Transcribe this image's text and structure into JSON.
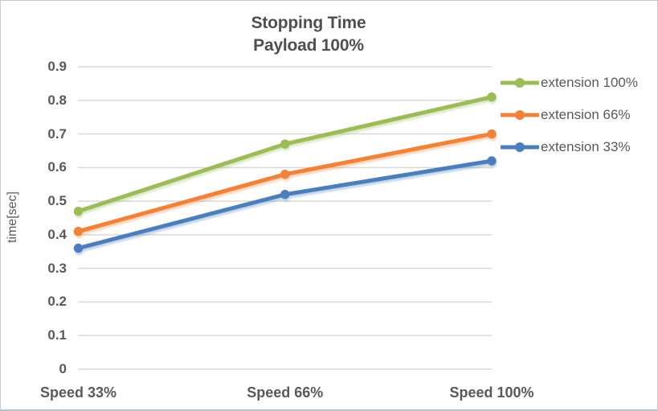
{
  "chart_data": {
    "type": "line",
    "title": "Stopping Time",
    "subtitle": "Payload 100%",
    "xlabel": "",
    "ylabel": "time[sec]",
    "categories": [
      "Speed 33%",
      "Speed 66%",
      "Speed 100%"
    ],
    "series": [
      {
        "name": "extension 100%",
        "values": [
          0.47,
          0.67,
          0.81
        ],
        "color": "#9CBB59"
      },
      {
        "name": "extension 66%",
        "values": [
          0.41,
          0.58,
          0.7
        ],
        "color": "#F0823A"
      },
      {
        "name": "extension 33%",
        "values": [
          0.36,
          0.52,
          0.62
        ],
        "color": "#4C7EBB"
      }
    ],
    "ylim": [
      0,
      0.9
    ],
    "y_ticks": [
      0.9,
      0.8,
      0.7,
      0.6,
      0.5,
      0.4,
      0.3,
      0.2,
      0.1,
      0
    ],
    "y_tick_labels": [
      "0.9",
      "0.8",
      "0.7",
      "0.6",
      "0.5",
      "0.4",
      "0.3",
      "0.2",
      "0.1",
      "0"
    ],
    "grid": true,
    "legend_position": "right",
    "marker": "circle"
  },
  "colors": {
    "grid": "#D9D9D9",
    "tick_text": "#595959",
    "title_text": "#4F4F4F",
    "background": "#FFFFFF"
  }
}
